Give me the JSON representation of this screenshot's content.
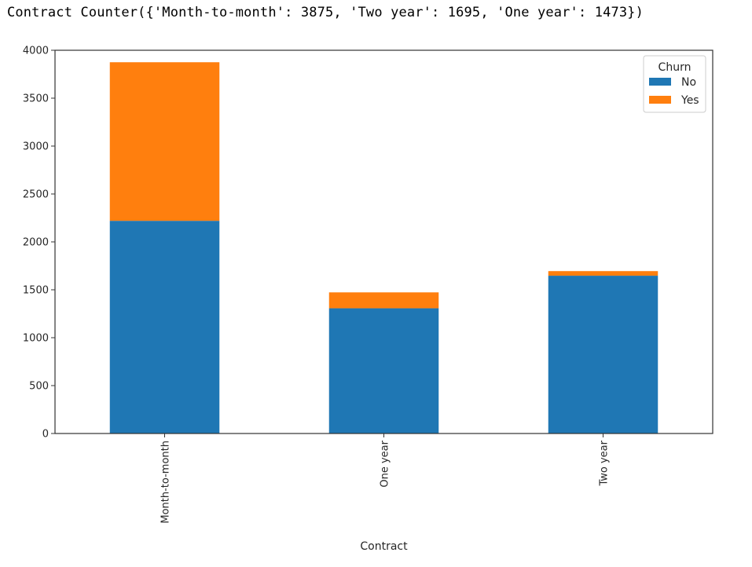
{
  "output": {
    "text": "Contract Counter({'Month-to-month': 3875, 'Two year': 1695, 'One year': 1473})"
  },
  "chart_data": {
    "type": "bar",
    "stacked": true,
    "categories": [
      "Month-to-month",
      "One year",
      "Two year"
    ],
    "series": [
      {
        "name": "No",
        "values": [
          2220,
          1307,
          1647
        ],
        "color": "#1f77b4"
      },
      {
        "name": "Yes",
        "values": [
          1655,
          166,
          48
        ],
        "color": "#ff7f0e"
      }
    ],
    "xlabel": "Contract",
    "ylabel": "",
    "ylim": [
      0,
      4000
    ],
    "yticks": [
      0,
      500,
      1000,
      1500,
      2000,
      2500,
      3000,
      3500,
      4000
    ],
    "legend": {
      "title": "Churn",
      "placement": "top-right"
    },
    "grid": false
  }
}
